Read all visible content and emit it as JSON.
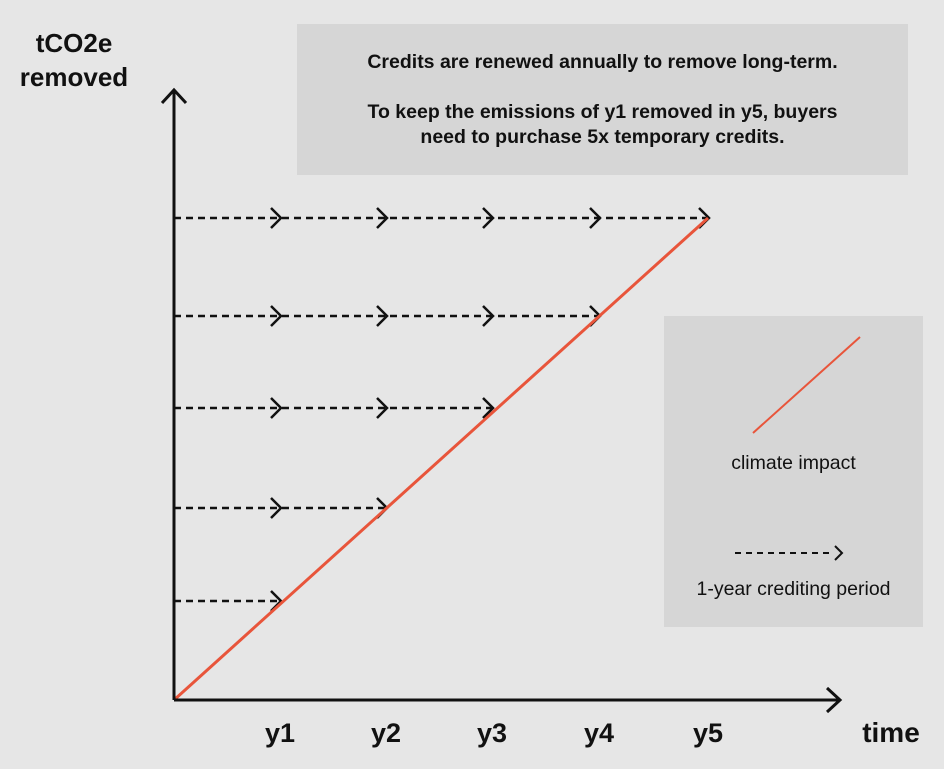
{
  "y_axis_label": [
    "tCO2e",
    "removed"
  ],
  "x_axis_label": "time",
  "ticks": [
    "y1",
    "y2",
    "y3",
    "y4",
    "y5"
  ],
  "note": {
    "line1": "Credits are renewed annually to remove long-term.",
    "line2a": "To keep the emissions of y1 removed in y5, buyers",
    "line2b": "need to purchase 5x temporary credits."
  },
  "legend": {
    "impact_label": "climate impact",
    "period_label": "1-year crediting period"
  },
  "colors": {
    "background": "#e6e6e6",
    "panel": "#d6d6d6",
    "impact_line": "#e8553b",
    "axis": "#111111"
  },
  "credit_rows": [
    {
      "level": 1,
      "arrow_years": [
        1
      ]
    },
    {
      "level": 2,
      "arrow_years": [
        1,
        2
      ]
    },
    {
      "level": 3,
      "arrow_years": [
        1,
        2,
        3
      ]
    },
    {
      "level": 4,
      "arrow_years": [
        1,
        2,
        3,
        4
      ]
    },
    {
      "level": 5,
      "arrow_years": [
        1,
        2,
        3,
        4,
        5
      ]
    }
  ]
}
